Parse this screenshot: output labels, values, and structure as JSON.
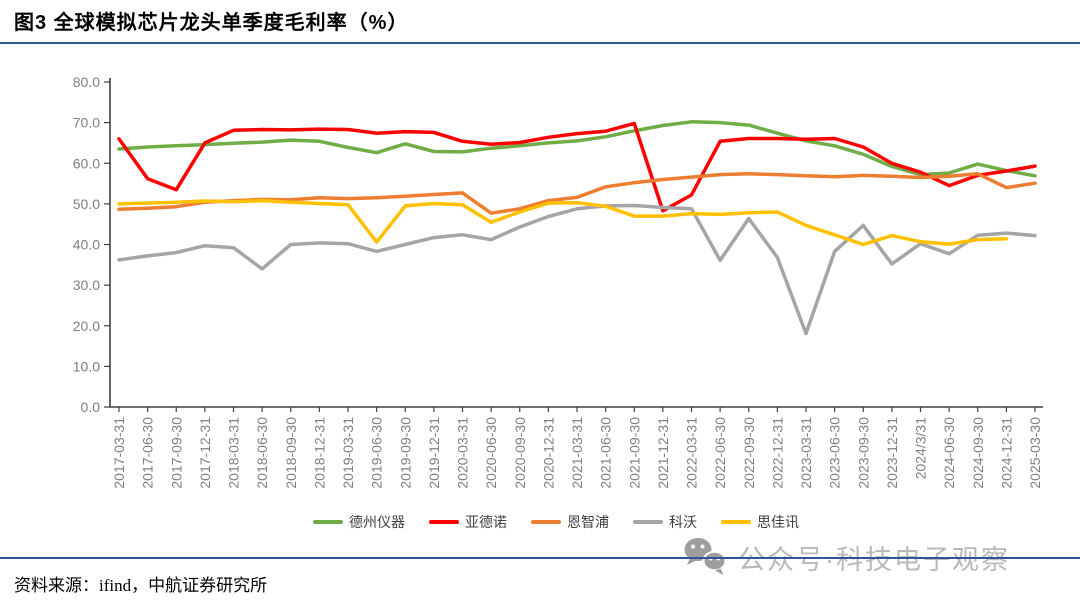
{
  "header": {
    "title": "图3 全球模拟芯片龙头单季度毛利率（%）"
  },
  "footer": {
    "source_note": "资料来源：ifind，中航证券研究所"
  },
  "watermark": {
    "icon": "wechat-icon",
    "text": "公众号·科技电子观察"
  },
  "colors": {
    "accent_rule": "#2F5597",
    "axis": "#404040",
    "axis_label": "#7f7f7f"
  },
  "chart_data": {
    "type": "line",
    "title": "全球模拟芯片龙头单季度毛利率（%）",
    "xlabel": "",
    "ylabel": "",
    "ylim": [
      0,
      80
    ],
    "ytick_step": 10,
    "grid": false,
    "legend_position": "bottom",
    "x": [
      "2017-03-31",
      "2017-06-30",
      "2017-09-30",
      "2017-12-31",
      "2018-03-31",
      "2018-06-30",
      "2018-09-30",
      "2018-12-31",
      "2019-03-31",
      "2019-06-30",
      "2019-09-30",
      "2019-12-31",
      "2020-03-31",
      "2020-06-30",
      "2020-09-30",
      "2020-12-31",
      "2021-03-31",
      "2021-06-30",
      "2021-09-30",
      "2021-12-31",
      "2022-03-31",
      "2022-06-30",
      "2022-09-30",
      "2022-12-31",
      "2023-03-31",
      "2023-06-30",
      "2023-09-30",
      "2023-12-31",
      "2024/3/31",
      "2024-06-30",
      "2024-09-30",
      "2024-12-31",
      "2025-03-30"
    ],
    "series": [
      {
        "name": "德州仪器",
        "slug": "texas-instruments",
        "color": "#70AD47",
        "values": [
          63.5,
          64.0,
          64.3,
          64.6,
          64.9,
          65.2,
          65.7,
          65.4,
          63.9,
          62.6,
          64.8,
          62.9,
          62.8,
          63.7,
          64.3,
          65.0,
          65.5,
          66.5,
          68.0,
          69.3,
          70.2,
          70.0,
          69.4,
          67.4,
          65.5,
          64.3,
          62.2,
          59.2,
          57.2,
          57.6,
          59.8,
          58.2,
          56.9
        ]
      },
      {
        "name": "亚德诺",
        "slug": "analog-devices",
        "color": "#FF0000",
        "values": [
          66.0,
          56.2,
          53.5,
          65.0,
          68.1,
          68.3,
          68.2,
          68.4,
          68.3,
          67.4,
          67.8,
          67.6,
          65.4,
          64.7,
          65.1,
          66.4,
          67.3,
          67.9,
          69.8,
          48.3,
          52.2,
          65.4,
          66.1,
          66.1,
          65.9,
          66.1,
          64.0,
          60.0,
          57.8,
          54.5,
          57.0,
          58.1,
          59.3
        ]
      },
      {
        "name": "恩智浦",
        "slug": "nxp",
        "color": "#ED7D31",
        "values": [
          48.7,
          48.9,
          49.3,
          50.4,
          50.8,
          51.1,
          51.0,
          51.5,
          51.3,
          51.5,
          51.9,
          52.3,
          52.7,
          47.7,
          48.8,
          50.8,
          51.6,
          54.2,
          55.2,
          56.0,
          56.6,
          57.2,
          57.4,
          57.2,
          56.9,
          56.7,
          57.0,
          56.8,
          56.5,
          56.8,
          57.4,
          54.0,
          55.1
        ]
      },
      {
        "name": "科沃",
        "slug": "qorvo",
        "color": "#A5A5A5",
        "values": [
          36.2,
          37.2,
          38.0,
          39.7,
          39.2,
          34.0,
          40.0,
          40.4,
          40.2,
          38.3,
          40.0,
          41.7,
          42.4,
          41.2,
          44.3,
          46.9,
          48.8,
          49.5,
          49.6,
          49.1,
          48.8,
          36.1,
          46.4,
          36.8,
          18.1,
          38.3,
          44.7,
          35.2,
          40.2,
          37.7,
          42.3,
          42.8,
          42.2
        ]
      },
      {
        "name": "思佳讯",
        "slug": "skyworks",
        "color": "#FFC000",
        "values": [
          50.0,
          50.2,
          50.4,
          50.7,
          50.5,
          50.8,
          50.4,
          50.1,
          49.8,
          40.6,
          49.5,
          50.1,
          49.8,
          45.5,
          48.0,
          50.2,
          50.3,
          49.4,
          47.0,
          47.0,
          47.6,
          47.4,
          47.8,
          48.0,
          44.7,
          42.4,
          40.0,
          42.2,
          40.7,
          40.1,
          41.2,
          41.4,
          null
        ]
      }
    ]
  }
}
